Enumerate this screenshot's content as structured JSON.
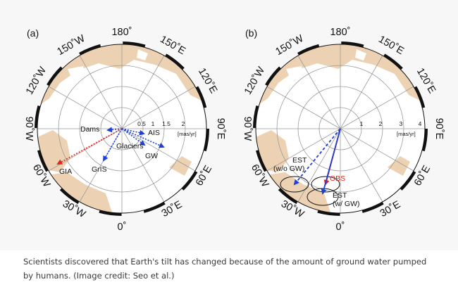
{
  "panels": [
    {
      "label": "(a)",
      "rim_labels": {
        "n": "180˚",
        "nne": "150˚E",
        "ene": "120˚E",
        "e": "90˚E",
        "ese": "60˚E",
        "sse": "30˚E",
        "s": "0˚",
        "ssw": "30˚W",
        "wsw": "60˚W",
        "w": "90˚W",
        "wnw": "120˚W",
        "nnw": "150˚W"
      },
      "scale_ticks": [
        "0.5",
        "1",
        "1.5",
        "2"
      ],
      "unit": "[mas/yr]",
      "vectors": [
        {
          "name": "Dams",
          "color": "#1f3fd6",
          "style": "dotted"
        },
        {
          "name": "AIS",
          "color": "#1f3fd6",
          "style": "dotted"
        },
        {
          "name": "Glaciers",
          "color": "#1f3fd6",
          "style": "dotted"
        },
        {
          "name": "GW",
          "color": "#1f3fd6",
          "style": "dotted"
        },
        {
          "name": "GrIS",
          "color": "#1f3fd6",
          "style": "dotted"
        },
        {
          "name": "GIA",
          "color": "#e3261d",
          "style": "dotted"
        }
      ]
    },
    {
      "label": "(b)",
      "rim_labels": {
        "n": "180˚",
        "nne": "150˚E",
        "ene": "120˚E",
        "e": "90˚E",
        "ese": "60˚E",
        "sse": "30˚E",
        "s": "0˚",
        "ssw": "30˚W",
        "wsw": "60˚W",
        "w": "90˚W",
        "wnw": "120˚W",
        "nnw": "150˚W"
      },
      "scale_ticks": [
        "1",
        "2",
        "3",
        "4"
      ],
      "unit": "[mas/yr]",
      "vectors": [
        {
          "name": "EST\n(w/o GW)",
          "line1": "EST",
          "line2": "(w/o GW)",
          "color": "#1f3fd6",
          "style": "dashed"
        },
        {
          "name": "OBS",
          "color": "#e3261d",
          "style": "solid"
        },
        {
          "name": "EST\n(w/ GW)",
          "line1": "EST",
          "line2": "(w/ GW)",
          "color": "#1f3fd6",
          "style": "solid"
        }
      ]
    }
  ],
  "colors": {
    "land": "#ecd2b3",
    "ocean": "#ffffff",
    "grid": "#9a9a9a",
    "rim_dark": "#111111",
    "blue": "#1f3fd6",
    "red": "#e3261d"
  },
  "caption": "Scientists discovered that Earth's tilt has changed because of the amount of ground water pumped by humans. (Image credit: Seo et al.)"
}
